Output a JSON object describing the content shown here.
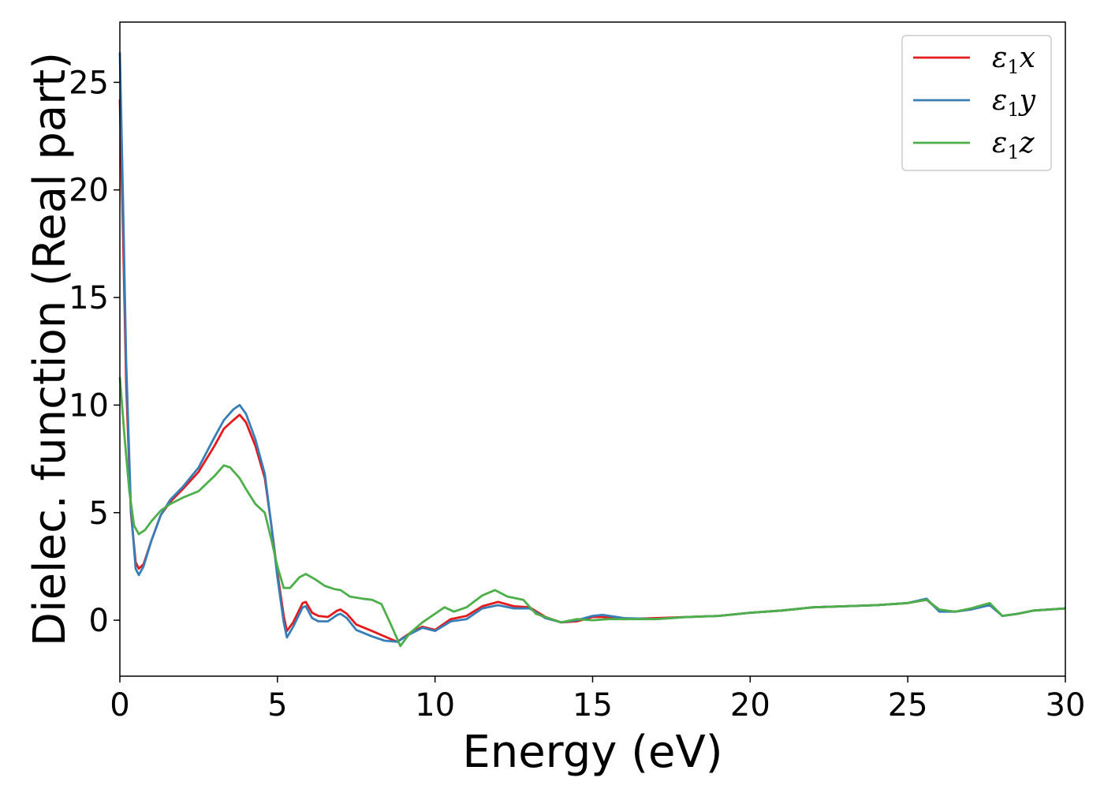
{
  "chart_data": {
    "type": "line",
    "title": "",
    "xlabel": "Energy (eV)",
    "ylabel": "Dielec. function (Real part)",
    "xlim": [
      0,
      30
    ],
    "ylim": [
      -2.6,
      27.8
    ],
    "xticks": [
      0,
      5,
      10,
      15,
      20,
      25,
      30
    ],
    "yticks": [
      0,
      5,
      10,
      15,
      20,
      25
    ],
    "grid": false,
    "legend_position": "top-right",
    "series": [
      {
        "name": "ε1x",
        "legend_main": "ε",
        "legend_sub": "1",
        "legend_suffix": "x",
        "color": "#e41a1c",
        "points": [
          [
            0,
            24.2
          ],
          [
            0.1,
            18
          ],
          [
            0.2,
            11
          ],
          [
            0.35,
            5
          ],
          [
            0.5,
            2.7
          ],
          [
            0.6,
            2.4
          ],
          [
            0.75,
            2.6
          ],
          [
            1.0,
            3.7
          ],
          [
            1.3,
            4.9
          ],
          [
            1.6,
            5.5
          ],
          [
            2.0,
            6.1
          ],
          [
            2.5,
            6.9
          ],
          [
            3.0,
            8.1
          ],
          [
            3.3,
            8.9
          ],
          [
            3.6,
            9.3
          ],
          [
            3.8,
            9.55
          ],
          [
            4.0,
            9.2
          ],
          [
            4.3,
            8.1
          ],
          [
            4.6,
            6.6
          ],
          [
            4.8,
            4.5
          ],
          [
            5.0,
            2.2
          ],
          [
            5.2,
            0.2
          ],
          [
            5.3,
            -0.5
          ],
          [
            5.5,
            -0.1
          ],
          [
            5.8,
            0.8
          ],
          [
            5.9,
            0.85
          ],
          [
            6.1,
            0.35
          ],
          [
            6.3,
            0.2
          ],
          [
            6.6,
            0.15
          ],
          [
            6.9,
            0.45
          ],
          [
            7.0,
            0.5
          ],
          [
            7.2,
            0.3
          ],
          [
            7.5,
            -0.2
          ],
          [
            8.0,
            -0.5
          ],
          [
            8.4,
            -0.75
          ],
          [
            8.8,
            -1.0
          ],
          [
            9.2,
            -0.6
          ],
          [
            9.6,
            -0.3
          ],
          [
            10.0,
            -0.45
          ],
          [
            10.5,
            0.05
          ],
          [
            11.0,
            0.2
          ],
          [
            11.5,
            0.65
          ],
          [
            12.0,
            0.85
          ],
          [
            12.5,
            0.65
          ],
          [
            13.0,
            0.6
          ],
          [
            13.5,
            0.15
          ],
          [
            14.0,
            -0.1
          ],
          [
            14.5,
            -0.05
          ],
          [
            15.0,
            0.15
          ],
          [
            15.3,
            0.15
          ],
          [
            16.0,
            0.05
          ],
          [
            17.0,
            0.1
          ],
          [
            18.0,
            0.15
          ],
          [
            19.0,
            0.2
          ],
          [
            20.0,
            0.35
          ],
          [
            21.0,
            0.45
          ],
          [
            22.0,
            0.6
          ],
          [
            23.0,
            0.65
          ],
          [
            24.0,
            0.7
          ],
          [
            25.0,
            0.8
          ],
          [
            25.6,
            0.95
          ],
          [
            26.0,
            0.45
          ],
          [
            26.5,
            0.4
          ],
          [
            27.0,
            0.5
          ],
          [
            27.6,
            0.75
          ],
          [
            28.0,
            0.2
          ],
          [
            28.5,
            0.3
          ],
          [
            29.0,
            0.45
          ],
          [
            30.0,
            0.55
          ]
        ]
      },
      {
        "name": "ε1y",
        "legend_main": "ε",
        "legend_sub": "1",
        "legend_suffix": "y",
        "color": "#377eb8",
        "points": [
          [
            0,
            26.4
          ],
          [
            0.1,
            19.5
          ],
          [
            0.2,
            12
          ],
          [
            0.35,
            5.2
          ],
          [
            0.5,
            2.4
          ],
          [
            0.6,
            2.1
          ],
          [
            0.75,
            2.5
          ],
          [
            1.0,
            3.7
          ],
          [
            1.3,
            4.9
          ],
          [
            1.6,
            5.6
          ],
          [
            2.0,
            6.2
          ],
          [
            2.5,
            7.1
          ],
          [
            3.0,
            8.5
          ],
          [
            3.3,
            9.3
          ],
          [
            3.6,
            9.8
          ],
          [
            3.8,
            10.0
          ],
          [
            4.0,
            9.6
          ],
          [
            4.3,
            8.4
          ],
          [
            4.6,
            6.8
          ],
          [
            4.8,
            4.5
          ],
          [
            5.0,
            2.0
          ],
          [
            5.2,
            -0.1
          ],
          [
            5.3,
            -0.8
          ],
          [
            5.5,
            -0.3
          ],
          [
            5.8,
            0.6
          ],
          [
            5.9,
            0.65
          ],
          [
            6.1,
            0.1
          ],
          [
            6.3,
            -0.05
          ],
          [
            6.6,
            -0.05
          ],
          [
            6.9,
            0.25
          ],
          [
            7.0,
            0.3
          ],
          [
            7.2,
            0.1
          ],
          [
            7.5,
            -0.45
          ],
          [
            8.0,
            -0.75
          ],
          [
            8.4,
            -0.95
          ],
          [
            8.8,
            -1.0
          ],
          [
            9.2,
            -0.65
          ],
          [
            9.6,
            -0.35
          ],
          [
            10.0,
            -0.5
          ],
          [
            10.5,
            -0.05
          ],
          [
            11.0,
            0.05
          ],
          [
            11.5,
            0.55
          ],
          [
            12.0,
            0.7
          ],
          [
            12.5,
            0.55
          ],
          [
            13.0,
            0.55
          ],
          [
            13.5,
            0.1
          ],
          [
            14.0,
            -0.1
          ],
          [
            14.5,
            0.0
          ],
          [
            15.0,
            0.2
          ],
          [
            15.3,
            0.25
          ],
          [
            16.0,
            0.1
          ],
          [
            17.0,
            0.05
          ],
          [
            18.0,
            0.15
          ],
          [
            19.0,
            0.2
          ],
          [
            20.0,
            0.35
          ],
          [
            21.0,
            0.45
          ],
          [
            22.0,
            0.6
          ],
          [
            23.0,
            0.65
          ],
          [
            24.0,
            0.7
          ],
          [
            25.0,
            0.8
          ],
          [
            25.6,
            1.0
          ],
          [
            26.0,
            0.4
          ],
          [
            26.5,
            0.4
          ],
          [
            27.0,
            0.5
          ],
          [
            27.6,
            0.7
          ],
          [
            28.0,
            0.2
          ],
          [
            28.5,
            0.3
          ],
          [
            29.0,
            0.45
          ],
          [
            30.0,
            0.55
          ]
        ]
      },
      {
        "name": "ε1z",
        "legend_main": "ε",
        "legend_sub": "1",
        "legend_suffix": "z",
        "color": "#4daf4a",
        "points": [
          [
            0,
            11.3
          ],
          [
            0.15,
            8.5
          ],
          [
            0.3,
            6
          ],
          [
            0.45,
            4.4
          ],
          [
            0.6,
            4.0
          ],
          [
            0.8,
            4.2
          ],
          [
            1.0,
            4.6
          ],
          [
            1.3,
            5.1
          ],
          [
            1.6,
            5.4
          ],
          [
            2.0,
            5.7
          ],
          [
            2.5,
            6.0
          ],
          [
            3.0,
            6.7
          ],
          [
            3.3,
            7.2
          ],
          [
            3.5,
            7.1
          ],
          [
            3.8,
            6.6
          ],
          [
            4.0,
            6.1
          ],
          [
            4.3,
            5.4
          ],
          [
            4.6,
            5.0
          ],
          [
            4.8,
            3.8
          ],
          [
            5.0,
            2.5
          ],
          [
            5.2,
            1.5
          ],
          [
            5.4,
            1.5
          ],
          [
            5.7,
            2.0
          ],
          [
            5.9,
            2.15
          ],
          [
            6.2,
            1.9
          ],
          [
            6.5,
            1.6
          ],
          [
            6.8,
            1.45
          ],
          [
            7.0,
            1.4
          ],
          [
            7.3,
            1.1
          ],
          [
            7.7,
            1.0
          ],
          [
            8.0,
            0.95
          ],
          [
            8.3,
            0.75
          ],
          [
            8.6,
            -0.2
          ],
          [
            8.9,
            -1.2
          ],
          [
            9.2,
            -0.6
          ],
          [
            9.6,
            -0.1
          ],
          [
            10.0,
            0.3
          ],
          [
            10.3,
            0.6
          ],
          [
            10.6,
            0.4
          ],
          [
            11.0,
            0.6
          ],
          [
            11.5,
            1.15
          ],
          [
            11.9,
            1.4
          ],
          [
            12.3,
            1.1
          ],
          [
            12.8,
            0.95
          ],
          [
            13.2,
            0.3
          ],
          [
            13.6,
            0.1
          ],
          [
            14.0,
            -0.1
          ],
          [
            14.5,
            0.05
          ],
          [
            15.0,
            0.0
          ],
          [
            15.5,
            0.05
          ],
          [
            16.0,
            0.05
          ],
          [
            17.0,
            0.05
          ],
          [
            18.0,
            0.15
          ],
          [
            19.0,
            0.2
          ],
          [
            20.0,
            0.35
          ],
          [
            21.0,
            0.45
          ],
          [
            22.0,
            0.6
          ],
          [
            23.0,
            0.65
          ],
          [
            24.0,
            0.7
          ],
          [
            25.0,
            0.8
          ],
          [
            25.6,
            0.95
          ],
          [
            26.0,
            0.5
          ],
          [
            26.5,
            0.4
          ],
          [
            27.0,
            0.55
          ],
          [
            27.6,
            0.8
          ],
          [
            28.0,
            0.2
          ],
          [
            28.5,
            0.3
          ],
          [
            29.0,
            0.45
          ],
          [
            30.0,
            0.55
          ]
        ]
      }
    ]
  }
}
